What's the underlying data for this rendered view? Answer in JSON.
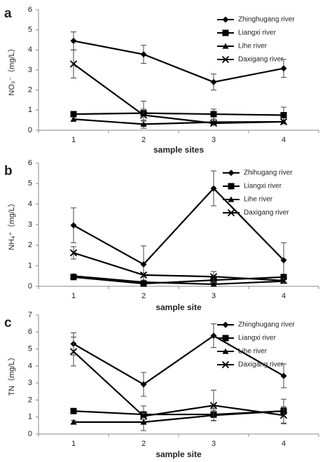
{
  "chart_data": [
    {
      "type": "line",
      "label": "a",
      "ylabel": "NO₃⁻（mg/L）",
      "xlabel": "sample sites",
      "categories": [
        "1",
        "2",
        "3",
        "4"
      ],
      "ylim": [
        0,
        6
      ],
      "yticks": [
        0,
        1,
        2,
        3,
        4,
        5,
        6
      ],
      "series": [
        {
          "name": "Zhinghugang river",
          "color": "#000000",
          "marker": "diamond",
          "values": [
            4.45,
            3.78,
            2.4,
            3.08
          ],
          "errors": [
            0.45,
            0.45,
            0.4,
            0.45
          ]
        },
        {
          "name": "Liangxi river",
          "color": "#000000",
          "marker": "square",
          "values": [
            0.8,
            0.85,
            0.8,
            0.75
          ],
          "errors": [
            0.1,
            0.6,
            0.25,
            0.4
          ]
        },
        {
          "name": "Lihe river",
          "color": "#000000",
          "marker": "triangle",
          "values": [
            0.55,
            0.3,
            0.4,
            0.42
          ],
          "errors": [
            0.1,
            0.2,
            0.15,
            0.1
          ]
        },
        {
          "name": "Daxigang river",
          "color": "#000000",
          "marker": "x",
          "values": [
            3.3,
            0.75,
            0.35,
            0.42
          ],
          "errors": [
            0.7,
            0.3,
            0.1,
            0.1
          ]
        }
      ]
    },
    {
      "type": "line",
      "label": "b",
      "ylabel": "NH₄⁺（mg/L）",
      "xlabel": "sample site",
      "categories": [
        "1",
        "2",
        "3",
        "4"
      ],
      "ylim": [
        0,
        6
      ],
      "yticks": [
        0,
        1,
        2,
        3,
        4,
        5,
        6
      ],
      "series": [
        {
          "name": "Zhihugang river",
          "color": "#000000",
          "marker": "diamond",
          "values": [
            2.97,
            1.07,
            4.77,
            1.27
          ],
          "errors": [
            0.85,
            0.9,
            0.85,
            0.85
          ]
        },
        {
          "name": "Liangxi river",
          "color": "#000000",
          "marker": "square",
          "values": [
            0.45,
            0.13,
            0.3,
            0.45
          ],
          "errors": [
            0.1,
            0.1,
            0.1,
            0.1
          ]
        },
        {
          "name": "Lihe river",
          "color": "#000000",
          "marker": "triangle",
          "values": [
            0.5,
            0.2,
            0.1,
            0.25
          ],
          "errors": [
            0.1,
            0.1,
            0.1,
            0.1
          ]
        },
        {
          "name": "Daxigang river",
          "color": "#000000",
          "marker": "x",
          "values": [
            1.63,
            0.55,
            0.47,
            0.28
          ],
          "errors": [
            0.3,
            0.1,
            0.25,
            0.1
          ]
        }
      ]
    },
    {
      "type": "line",
      "label": "c",
      "ylabel": "TN（mg/L）",
      "xlabel": "sample site",
      "categories": [
        "1",
        "2",
        "3",
        "4"
      ],
      "ylim": [
        0,
        7
      ],
      "yticks": [
        0,
        1,
        2,
        3,
        4,
        5,
        6,
        7
      ],
      "series": [
        {
          "name": "Zhinghugang river",
          "color": "#000000",
          "marker": "diamond",
          "values": [
            5.3,
            2.92,
            5.78,
            3.42
          ],
          "errors": [
            0.65,
            0.7,
            0.7,
            0.7
          ]
        },
        {
          "name": "Liangxi river",
          "color": "#000000",
          "marker": "square",
          "values": [
            1.35,
            1.15,
            1.15,
            1.35
          ],
          "errors": [
            0.1,
            0.5,
            0.35,
            0.7
          ]
        },
        {
          "name": "Lihe river",
          "color": "#000000",
          "marker": "triangle",
          "values": [
            0.7,
            0.7,
            1.1,
            1.35
          ],
          "errors": [
            0.1,
            0.5,
            0.3,
            0.2
          ]
        },
        {
          "name": "Daxigang river",
          "color": "#000000",
          "marker": "x",
          "values": [
            4.85,
            1.05,
            1.68,
            1.1
          ],
          "errors": [
            0.85,
            0.2,
            0.9,
            0.5
          ]
        }
      ]
    }
  ]
}
